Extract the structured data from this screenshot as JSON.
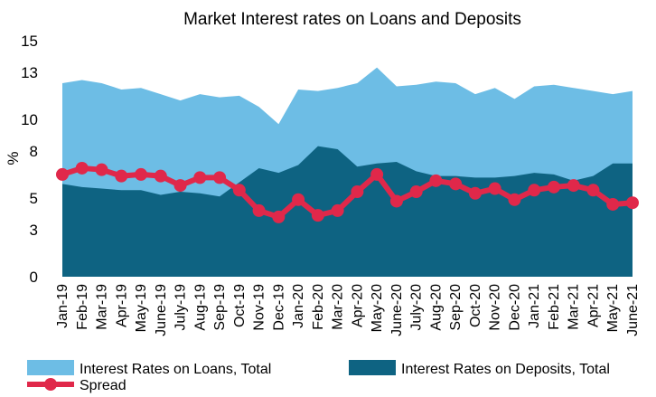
{
  "chart_data": {
    "type": "area",
    "title": "Market Interest rates on Loans and Deposits",
    "ylabel": "%",
    "ylim": [
      0,
      15
    ],
    "yticks": [
      0,
      3,
      5,
      8,
      10,
      13,
      15
    ],
    "grid": false,
    "legend_position": "bottom",
    "categories": [
      "Jan-19",
      "Feb-19",
      "Mar-19",
      "Apr-19",
      "May-19",
      "June-19",
      "July-19",
      "Aug-19",
      "Sep-19",
      "Oct-19",
      "Nov-19",
      "Dec-19",
      "Jan-20",
      "Feb-20",
      "Mar-20",
      "Apr-20",
      "May-20",
      "June-20",
      "July-20",
      "Aug-20",
      "Sep-20",
      "Oct-20",
      "Nov-20",
      "Dec-20",
      "Jan-21",
      "Feb-21",
      "Mar-21",
      "Apr-21",
      "May-21",
      "June-21"
    ],
    "series": [
      {
        "name": "Interest Rates on Loans, Total",
        "kind": "area",
        "color": "#6DBDE5",
        "values": [
          12.3,
          12.5,
          12.3,
          11.9,
          12.0,
          11.6,
          11.2,
          11.6,
          11.4,
          11.5,
          10.8,
          9.7,
          11.9,
          11.8,
          12.0,
          12.3,
          13.3,
          12.1,
          12.2,
          12.4,
          12.3,
          11.6,
          12.0,
          11.3,
          12.1,
          12.2,
          12.0,
          11.8,
          11.6,
          11.8
        ]
      },
      {
        "name": "Interest Rates on Deposits, Total",
        "kind": "area",
        "color": "#0E6382",
        "values": [
          5.9,
          5.7,
          5.6,
          5.5,
          5.5,
          5.2,
          5.4,
          5.3,
          5.1,
          6.0,
          6.9,
          6.6,
          7.1,
          8.3,
          8.1,
          7.0,
          7.2,
          7.3,
          6.7,
          6.4,
          6.4,
          6.3,
          6.3,
          6.4,
          6.6,
          6.5,
          6.1,
          6.4,
          7.2,
          7.2
        ]
      },
      {
        "name": "Spread",
        "kind": "line",
        "color": "#E0284A",
        "values": [
          6.5,
          6.9,
          6.8,
          6.4,
          6.5,
          6.4,
          5.8,
          6.3,
          6.3,
          5.5,
          4.2,
          3.8,
          4.9,
          3.9,
          4.2,
          5.4,
          6.5,
          4.8,
          5.4,
          6.1,
          5.9,
          5.3,
          5.6,
          4.9,
          5.5,
          5.7,
          5.8,
          5.5,
          4.6,
          4.7
        ]
      }
    ]
  }
}
